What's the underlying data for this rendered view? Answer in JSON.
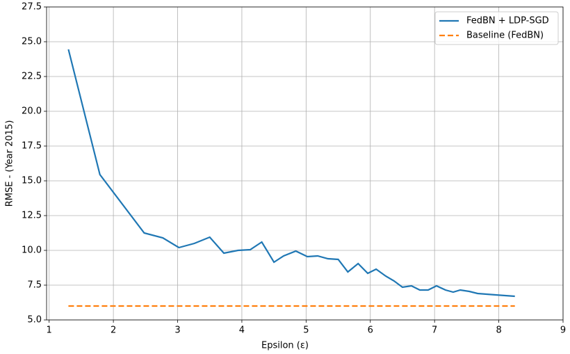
{
  "chart_data": {
    "type": "line",
    "xlabel": "Epsilon (ε)",
    "ylabel": "RMSE - (Year 2015)",
    "series": [
      {
        "name": "FedBN + LDP-SGD",
        "color": "#1f77b4",
        "linestyle": "solid",
        "x": [
          1.3,
          1.79,
          2.48,
          2.77,
          3.02,
          3.26,
          3.5,
          3.72,
          3.94,
          4.13,
          4.31,
          4.5,
          4.65,
          4.84,
          5.02,
          5.18,
          5.34,
          5.5,
          5.65,
          5.81,
          5.96,
          6.09,
          6.24,
          6.37,
          6.5,
          6.64,
          6.77,
          6.9,
          7.03,
          7.17,
          7.29,
          7.4,
          7.54,
          7.67,
          7.81,
          7.95,
          8.1,
          8.25
        ],
        "values": [
          24.45,
          15.45,
          11.25,
          10.9,
          10.2,
          10.5,
          10.95,
          9.8,
          10.0,
          10.05,
          10.6,
          9.15,
          9.6,
          9.95,
          9.55,
          9.6,
          9.4,
          9.35,
          8.45,
          9.05,
          8.35,
          8.65,
          8.15,
          7.8,
          7.35,
          7.45,
          7.15,
          7.15,
          7.45,
          7.15,
          7.0,
          7.15,
          7.05,
          6.9,
          6.85,
          6.8,
          6.75,
          6.7
        ]
      },
      {
        "name": "Baseline (FedBN)",
        "color": "#ff7f0e",
        "linestyle": "dashed",
        "x": [
          1.3,
          8.25
        ],
        "values": [
          6.0,
          6.0
        ]
      }
    ],
    "xlim": [
      0.96,
      9
    ],
    "xticks": [
      1,
      2,
      3,
      4,
      5,
      6,
      7,
      8,
      9
    ],
    "ylim": [
      5,
      27.5
    ],
    "yticks": [
      {
        "value": 5,
        "label": "5.0"
      },
      {
        "value": 7.5,
        "label": "7.5"
      },
      {
        "value": 10,
        "label": "10.0"
      },
      {
        "value": 12.5,
        "label": "12.5"
      },
      {
        "value": 15,
        "label": "15.0"
      },
      {
        "value": 17.5,
        "label": "17.5"
      },
      {
        "value": 20,
        "label": "20.0"
      },
      {
        "value": 22.5,
        "label": "22.5"
      },
      {
        "value": 25,
        "label": "25.0"
      },
      {
        "value": 27.5,
        "label": "27.5"
      }
    ],
    "grid": true,
    "legend": "upper-right"
  }
}
